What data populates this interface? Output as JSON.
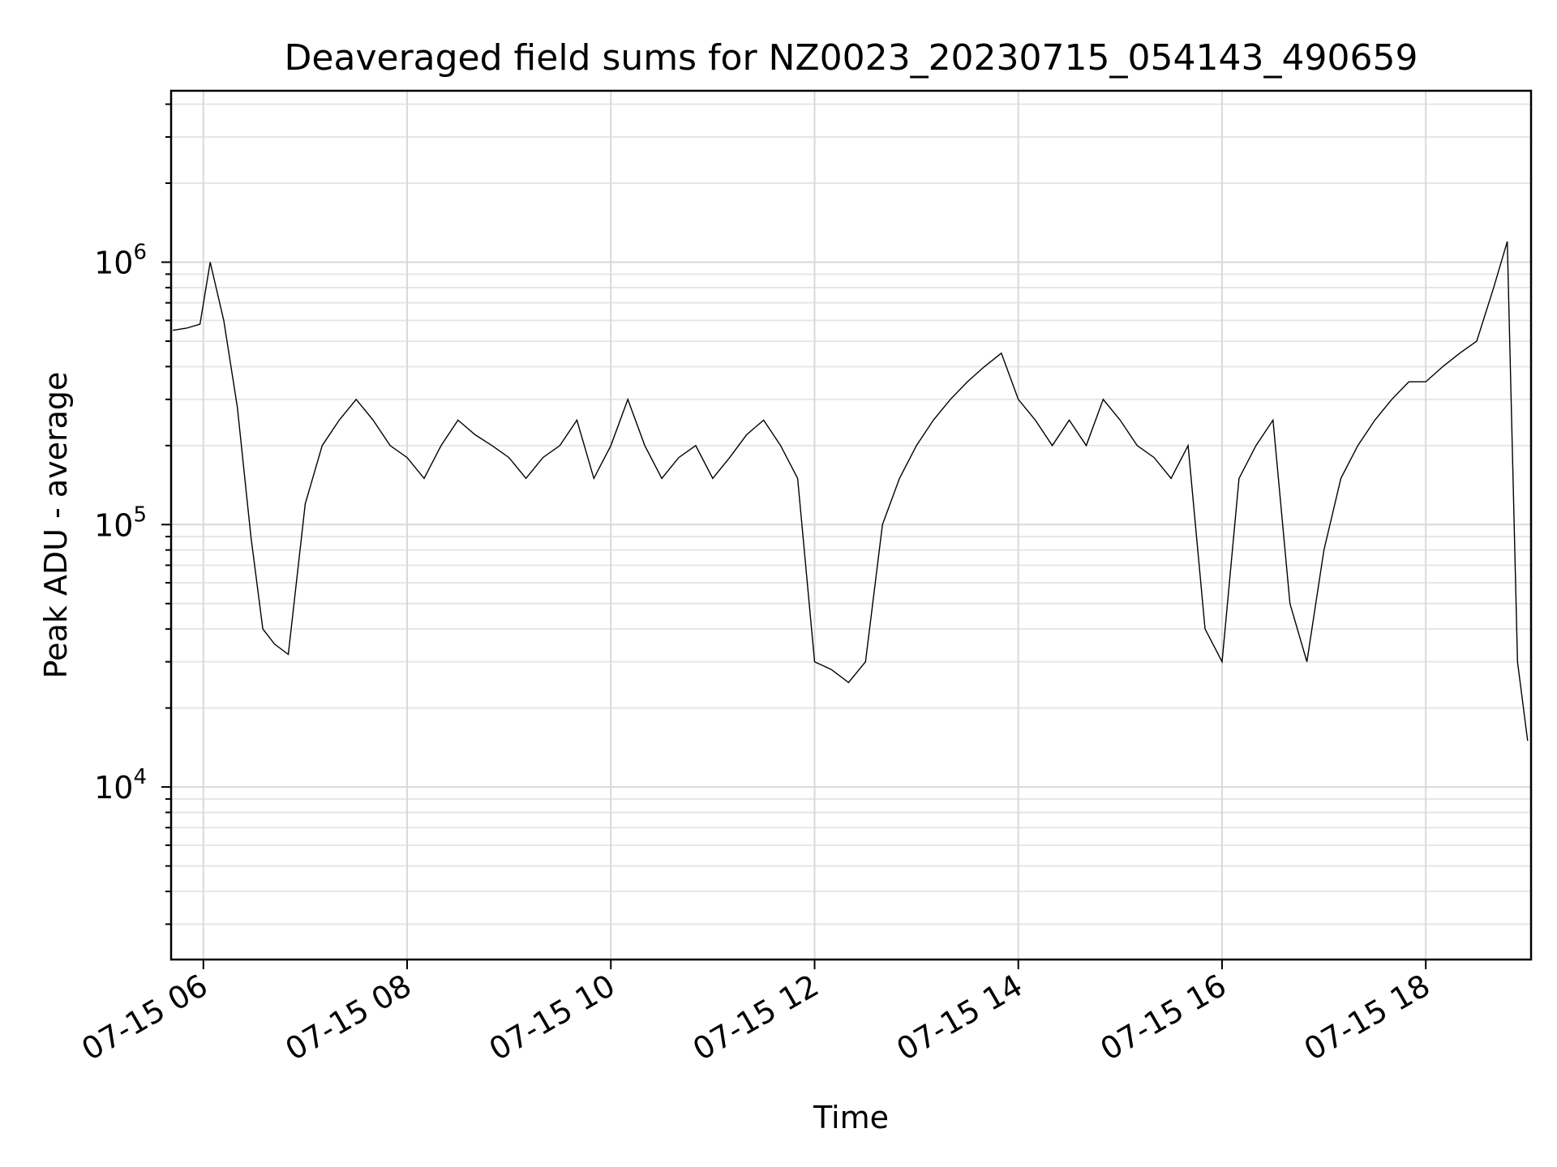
{
  "chart_data": {
    "type": "line",
    "title": "Deaveraged field sums for NZ0023_20230715_054143_490659",
    "xlabel": "Time",
    "ylabel": "Peak ADU - average",
    "yscale": "log",
    "grid": true,
    "xlim": [
      "2023-07-15 05:41",
      "2023-07-15 19:02"
    ],
    "ylim": [
      2200,
      4500000
    ],
    "x_ticks": [
      {
        "value": "2023-07-15 06:00",
        "label": "07-15 06"
      },
      {
        "value": "2023-07-15 08:00",
        "label": "07-15 08"
      },
      {
        "value": "2023-07-15 10:00",
        "label": "07-15 10"
      },
      {
        "value": "2023-07-15 12:00",
        "label": "07-15 12"
      },
      {
        "value": "2023-07-15 14:00",
        "label": "07-15 14"
      },
      {
        "value": "2023-07-15 16:00",
        "label": "07-15 16"
      },
      {
        "value": "2023-07-15 18:00",
        "label": "07-15 18"
      }
    ],
    "y_ticks": [
      {
        "value": 10000,
        "base": "10",
        "exp": "4"
      },
      {
        "value": 100000,
        "base": "10",
        "exp": "5"
      },
      {
        "value": 1000000,
        "base": "10",
        "exp": "6"
      }
    ],
    "series": [
      {
        "color": "#000000",
        "x": [
          "2023-07-15 05:42",
          "2023-07-15 05:50",
          "2023-07-15 05:58",
          "2023-07-15 06:04",
          "2023-07-15 06:12",
          "2023-07-15 06:20",
          "2023-07-15 06:28",
          "2023-07-15 06:35",
          "2023-07-15 06:42",
          "2023-07-15 06:50",
          "2023-07-15 07:00",
          "2023-07-15 07:10",
          "2023-07-15 07:20",
          "2023-07-15 07:30",
          "2023-07-15 07:40",
          "2023-07-15 07:50",
          "2023-07-15 08:00",
          "2023-07-15 08:10",
          "2023-07-15 08:20",
          "2023-07-15 08:30",
          "2023-07-15 08:40",
          "2023-07-15 08:50",
          "2023-07-15 09:00",
          "2023-07-15 09:10",
          "2023-07-15 09:20",
          "2023-07-15 09:30",
          "2023-07-15 09:40",
          "2023-07-15 09:50",
          "2023-07-15 10:00",
          "2023-07-15 10:10",
          "2023-07-15 10:20",
          "2023-07-15 10:30",
          "2023-07-15 10:40",
          "2023-07-15 10:50",
          "2023-07-15 11:00",
          "2023-07-15 11:10",
          "2023-07-15 11:20",
          "2023-07-15 11:30",
          "2023-07-15 11:40",
          "2023-07-15 11:50",
          "2023-07-15 12:00",
          "2023-07-15 12:10",
          "2023-07-15 12:20",
          "2023-07-15 12:30",
          "2023-07-15 12:40",
          "2023-07-15 12:50",
          "2023-07-15 13:00",
          "2023-07-15 13:10",
          "2023-07-15 13:20",
          "2023-07-15 13:30",
          "2023-07-15 13:40",
          "2023-07-15 13:50",
          "2023-07-15 14:00",
          "2023-07-15 14:10",
          "2023-07-15 14:20",
          "2023-07-15 14:30",
          "2023-07-15 14:40",
          "2023-07-15 14:50",
          "2023-07-15 15:00",
          "2023-07-15 15:10",
          "2023-07-15 15:20",
          "2023-07-15 15:30",
          "2023-07-15 15:40",
          "2023-07-15 15:50",
          "2023-07-15 16:00",
          "2023-07-15 16:10",
          "2023-07-15 16:20",
          "2023-07-15 16:30",
          "2023-07-15 16:40",
          "2023-07-15 16:50",
          "2023-07-15 17:00",
          "2023-07-15 17:10",
          "2023-07-15 17:20",
          "2023-07-15 17:30",
          "2023-07-15 17:40",
          "2023-07-15 17:50",
          "2023-07-15 18:00",
          "2023-07-15 18:10",
          "2023-07-15 18:20",
          "2023-07-15 18:30",
          "2023-07-15 18:40",
          "2023-07-15 18:48",
          "2023-07-15 18:54",
          "2023-07-15 19:00"
        ],
        "y": [
          550000,
          560000,
          580000,
          1000000,
          600000,
          280000,
          90000,
          40000,
          35000,
          32000,
          120000,
          200000,
          250000,
          300000,
          250000,
          200000,
          180000,
          150000,
          200000,
          250000,
          220000,
          200000,
          180000,
          150000,
          180000,
          200000,
          250000,
          150000,
          200000,
          300000,
          200000,
          150000,
          180000,
          200000,
          150000,
          180000,
          220000,
          250000,
          200000,
          150000,
          30000,
          28000,
          25000,
          30000,
          100000,
          150000,
          200000,
          250000,
          300000,
          350000,
          400000,
          450000,
          300000,
          250000,
          200000,
          250000,
          200000,
          300000,
          250000,
          200000,
          180000,
          150000,
          200000,
          40000,
          30000,
          150000,
          200000,
          250000,
          50000,
          30000,
          80000,
          150000,
          200000,
          250000,
          300000,
          350000,
          350000,
          400000,
          450000,
          500000,
          800000,
          1200000,
          30000,
          15000
        ]
      }
    ]
  }
}
